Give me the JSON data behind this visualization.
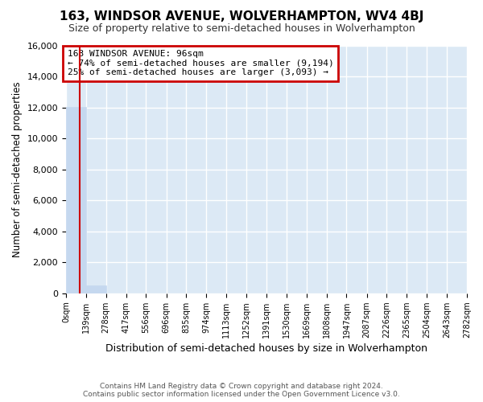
{
  "title": "163, WINDSOR AVENUE, WOLVERHAMPTON, WV4 4BJ",
  "subtitle": "Size of property relative to semi-detached houses in Wolverhampton",
  "xlabel": "Distribution of semi-detached houses by size in Wolverhampton",
  "ylabel": "Number of semi-detached properties",
  "property_size": 96,
  "property_label": "163 WINDSOR AVENUE: 96sqm",
  "pct_smaller": 74,
  "num_smaller": 9194,
  "pct_larger": 25,
  "num_larger": 3093,
  "bin_edges": [
    0,
    139,
    278,
    417,
    556,
    696,
    835,
    974,
    1113,
    1252,
    1391,
    1530,
    1669,
    1808,
    1947,
    2087,
    2226,
    2365,
    2504,
    2643,
    2782
  ],
  "bar_values": [
    12050,
    500,
    0,
    0,
    0,
    0,
    0,
    0,
    0,
    0,
    0,
    0,
    0,
    0,
    0,
    0,
    0,
    0,
    0,
    0
  ],
  "bar_color": "#c5d8ef",
  "property_line_color": "#cc0000",
  "annotation_box_color": "#cc0000",
  "ylim": [
    0,
    16000
  ],
  "yticks": [
    0,
    2000,
    4000,
    6000,
    8000,
    10000,
    12000,
    14000,
    16000
  ],
  "background_color": "#dce9f5",
  "grid_color": "#ffffff",
  "footer_line1": "Contains HM Land Registry data © Crown copyright and database right 2024.",
  "footer_line2": "Contains public sector information licensed under the Open Government Licence v3.0."
}
